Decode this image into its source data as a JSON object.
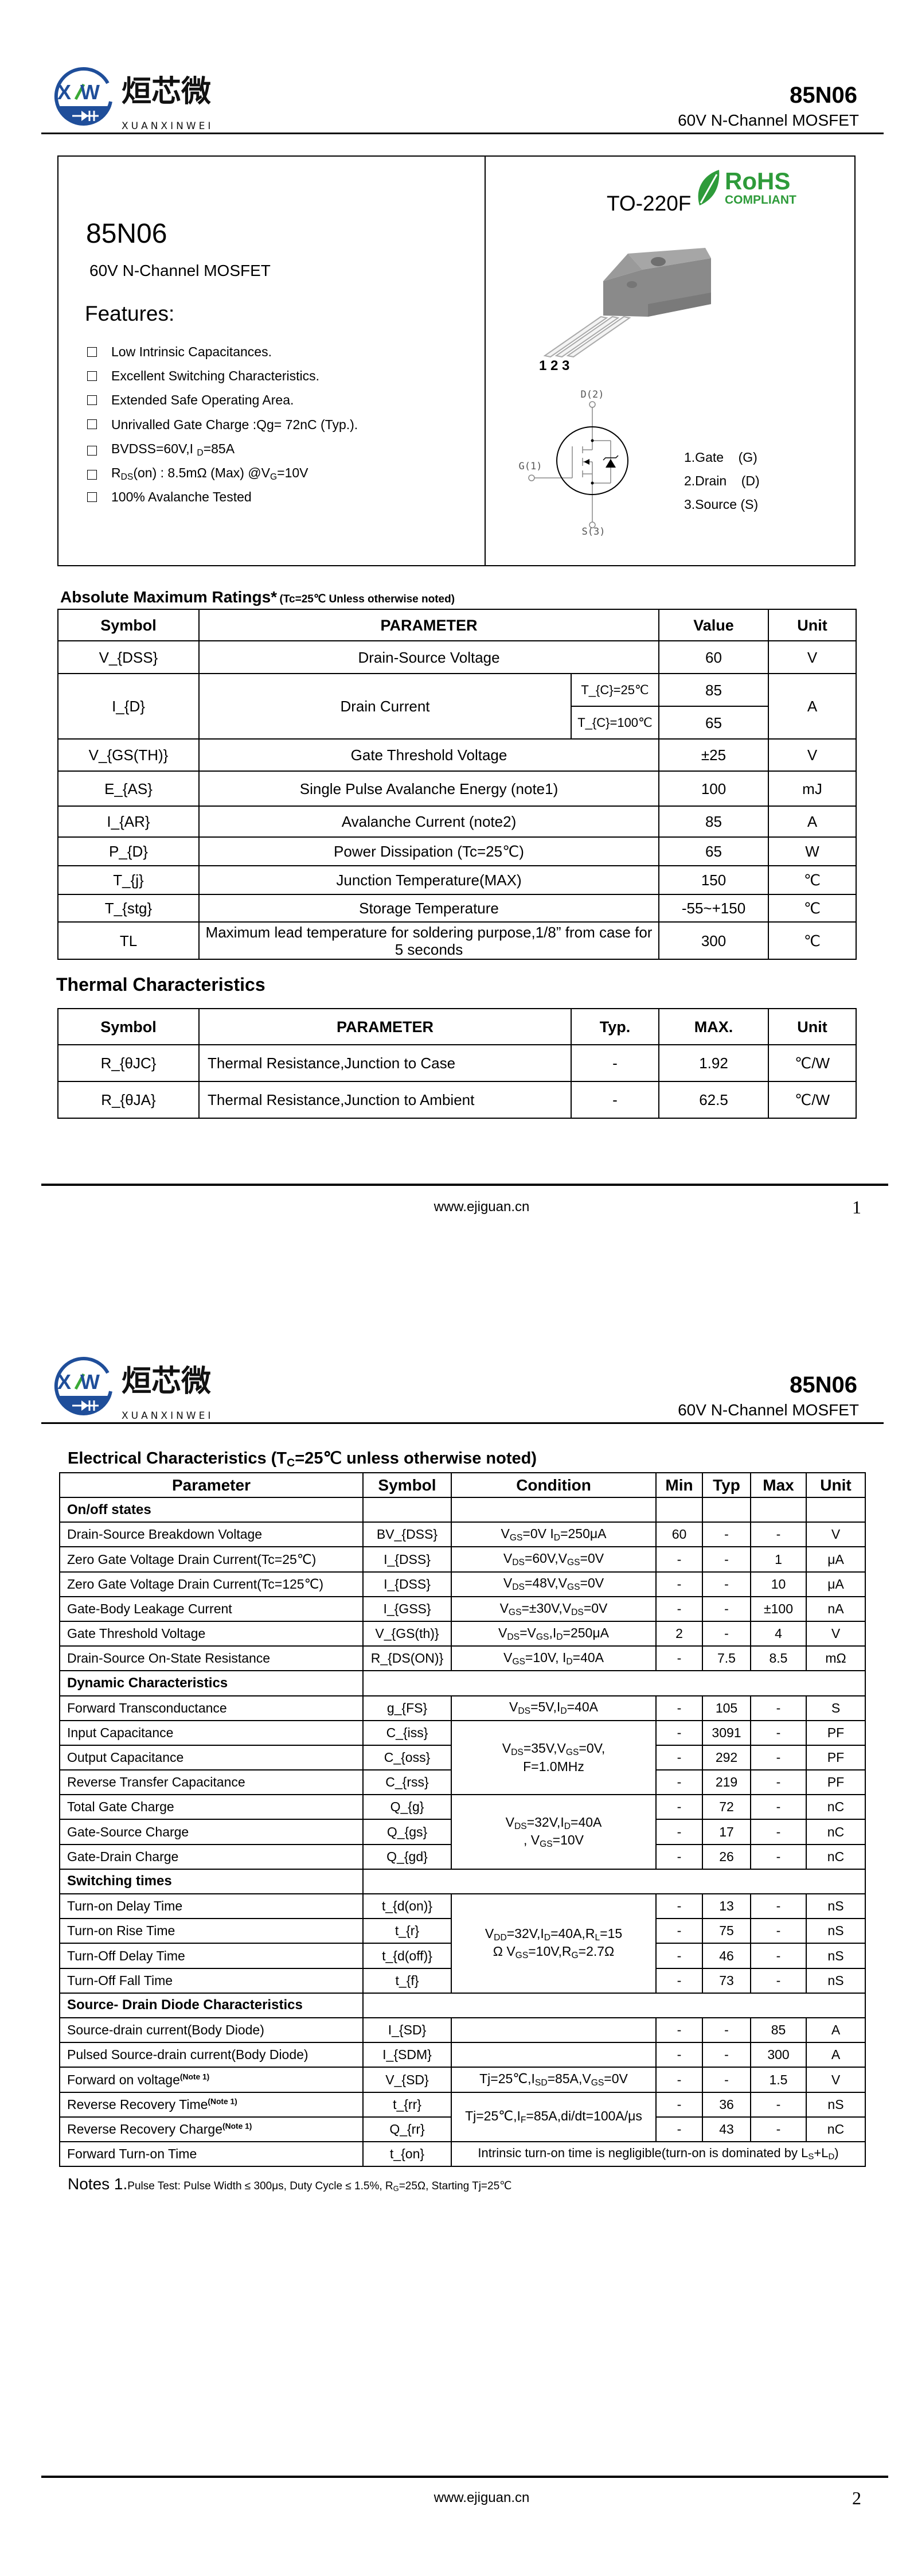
{
  "brand": {
    "logo_mark": "XW",
    "logo_cn": "烜芯微",
    "logo_en": "XUANXINWEI",
    "blue": "#1f4e9a",
    "green": "#3aa935"
  },
  "header": {
    "part": "85N06",
    "subtitle": "60V N-Channel MOSFET"
  },
  "footer": {
    "url": "www.ejiguan.cn",
    "page1": "1",
    "page2": "2"
  },
  "overview": {
    "part": "85N06",
    "subtitle": "60V N-Channel MOSFET",
    "features_title": "Features:",
    "features": [
      "Low Intrinsic Capacitances.",
      "Excellent Switching Characteristics.",
      "Extended Safe Operating Area.",
      "Unrivalled Gate Charge :Qg= 72nC (Typ.).",
      "BVDSS=60V,I _{D}=85A",
      "R_{DS}(on) : 8.5mΩ (Max) @V_{G}=10V",
      "100% Avalanche Tested"
    ],
    "package": "TO-220F",
    "rohs": {
      "line1": "RoHS",
      "line2": "COMPLIANT",
      "color": "#2e9b3a"
    },
    "pin_numbers": "1 2 3",
    "symbol_labels": {
      "drain": "D(2)",
      "gate": "G(1)",
      "source": "S(3)"
    },
    "pins": [
      "1.Gate    (G)",
      "2.Drain    (D)",
      "3.Source (S)"
    ]
  },
  "abs_max": {
    "title": "Absolute Maximum Ratings*",
    "subtitle": "(Tc=25℃ Unless otherwise noted)",
    "headers": [
      "Symbol",
      "PARAMETER",
      "Value",
      "Unit"
    ],
    "rows": [
      {
        "symbol": "V_{DSS}",
        "parameter": "Drain-Source Voltage",
        "value": "60",
        "unit": "V"
      },
      {
        "symbol": "I_{D}",
        "parameter": "Drain Current",
        "cond1": "T_{C}=25℃",
        "value1": "85",
        "cond2": "T_{C}=100℃",
        "value2": "65",
        "unit": "A"
      },
      {
        "symbol": "V_{GS(TH)}",
        "parameter": "Gate Threshold Voltage",
        "value": "±25",
        "unit": "V"
      },
      {
        "symbol": "E_{AS}",
        "parameter": "Single Pulse Avalanche Energy (note1)",
        "value": "100",
        "unit": "mJ"
      },
      {
        "symbol": "I_{AR}",
        "parameter": "Avalanche Current (note2)",
        "value": "85",
        "unit": "A"
      },
      {
        "symbol": "P_{D}",
        "parameter": "Power Dissipation (Tc=25℃)",
        "value": "65",
        "unit": "W"
      },
      {
        "symbol": "T_{j}",
        "parameter": "Junction Temperature(MAX)",
        "value": "150",
        "unit": "℃"
      },
      {
        "symbol": "T_{stg}",
        "parameter": "Storage Temperature",
        "value": "-55~+150",
        "unit": "℃"
      },
      {
        "symbol": "TL",
        "parameter": "Maximum lead temperature for soldering purpose,1/8” from case for 5 seconds",
        "value": "300",
        "unit": "℃"
      }
    ]
  },
  "thermal": {
    "title": "Thermal Characteristics",
    "headers": [
      "Symbol",
      "PARAMETER",
      "Typ.",
      "MAX.",
      "Unit"
    ],
    "rows": [
      {
        "symbol": "R_{θJC}",
        "parameter": "Thermal Resistance,Junction to Case",
        "typ": "-",
        "max": "1.92",
        "unit": "℃/W"
      },
      {
        "symbol": "R_{θJA}",
        "parameter": "Thermal Resistance,Junction to Ambient",
        "typ": "-",
        "max": "62.5",
        "unit": "℃/W"
      }
    ]
  },
  "electrical": {
    "title": "Electrical Characteristics (T_{C}=25℃ unless otherwise noted)",
    "headers": [
      "Parameter",
      "Symbol",
      "Condition",
      "Min",
      "Typ",
      "Max",
      "Unit"
    ],
    "rows": [
      {
        "section": "On/off states",
        "split": true
      },
      {
        "p": "Drain-Source Breakdown Voltage",
        "s": "BV_{DSS}",
        "c": "V_{GS}=0V I_{D}=250μA",
        "min": "60",
        "typ": "-",
        "max": "-",
        "u": "V"
      },
      {
        "p": "Zero Gate Voltage Drain Current(Tc=25℃)",
        "s": "I_{DSS}",
        "c": "V_{DS}=60V,V_{GS}=0V",
        "min": "-",
        "typ": "-",
        "max": "1",
        "u": "μA"
      },
      {
        "p": "Zero Gate Voltage Drain Current(Tc=125℃)",
        "s": "I_{DSS}",
        "c": "V_{DS}=48V,V_{GS}=0V",
        "min": "-",
        "typ": "-",
        "max": "10",
        "u": "μA"
      },
      {
        "p": "Gate-Body Leakage Current",
        "s": "I_{GSS}",
        "c": "V_{GS}=±30V,V_{DS}=0V",
        "min": "-",
        "typ": "-",
        "max": "±100",
        "u": "nA"
      },
      {
        "p": "Gate Threshold Voltage",
        "s": "V_{GS(th)}",
        "c": "V_{DS}=V_{GS},I_{D}=250μA",
        "min": "2",
        "typ": "-",
        "max": "4",
        "u": "V"
      },
      {
        "p": "Drain-Source On-State Resistance",
        "s": "R_{DS(ON)}",
        "c": "V_{GS}=10V, I_{D}=40A",
        "min": "-",
        "typ": "7.5",
        "max": "8.5",
        "u": "mΩ"
      },
      {
        "section": "Dynamic Characteristics",
        "split": false
      },
      {
        "p": "Forward Transconductance",
        "s": "g_{FS}",
        "c": "V_{DS}=5V,I_{D}=40A",
        "min": "-",
        "typ": "105",
        "max": "-",
        "u": "S"
      },
      {
        "p": "Input Capacitance",
        "s": "C_{iss}",
        "c": "V_{DS}=35V,V_{GS}=0V,\nF=1.0MHz",
        "crs": 3,
        "min": "-",
        "typ": "3091",
        "max": "-",
        "u": "PF"
      },
      {
        "p": "Output Capacitance",
        "s": "C_{oss}",
        "min": "-",
        "typ": "292",
        "max": "-",
        "u": "PF"
      },
      {
        "p": "Reverse Transfer Capacitance",
        "s": "C_{rss}",
        "min": "-",
        "typ": "219",
        "max": "-",
        "u": "PF"
      },
      {
        "p": "Total Gate Charge",
        "s": "Q_{g}",
        "c": "V_{DS}=32V,I_{D}=40A\n, V_{GS}=10V",
        "crs": 3,
        "min": "-",
        "typ": "72",
        "max": "-",
        "u": "nC"
      },
      {
        "p": "Gate-Source Charge",
        "s": "Q_{gs}",
        "min": "-",
        "typ": "17",
        "max": "-",
        "u": "nC"
      },
      {
        "p": "Gate-Drain Charge",
        "s": "Q_{gd}",
        "min": "-",
        "typ": "26",
        "max": "-",
        "u": "nC"
      },
      {
        "section": "Switching times",
        "split": false
      },
      {
        "p": "Turn-on Delay Time",
        "s": "t_{d(on)}",
        "c": "V_{DD}=32V,I_{D}=40A,R_{L}=15\nΩ V_{GS}=10V,R_{G}=2.7Ω",
        "crs": 4,
        "min": "-",
        "typ": "13",
        "max": "-",
        "u": "nS"
      },
      {
        "p": "Turn-on Rise Time",
        "s": "t_{r}",
        "min": "-",
        "typ": "75",
        "max": "-",
        "u": "nS"
      },
      {
        "p": "Turn-Off Delay Time",
        "s": "t_{d(off)}",
        "min": "-",
        "typ": "46",
        "max": "-",
        "u": "nS"
      },
      {
        "p": "Turn-Off Fall Time",
        "s": "t_{f}",
        "min": "-",
        "typ": "73",
        "max": "-",
        "u": "nS"
      },
      {
        "section": "Source- Drain Diode Characteristics",
        "split": false
      },
      {
        "p": "Source-drain current(Body Diode)",
        "s": "I_{SD}",
        "c": "",
        "min": "-",
        "typ": "-",
        "max": "85",
        "u": "A"
      },
      {
        "p": "Pulsed Source-drain current(Body Diode)",
        "s": "I_{SDM}",
        "c": "",
        "min": "-",
        "typ": "-",
        "max": "300",
        "u": "A"
      },
      {
        "p": "Forward on voltage^{(Note 1)}",
        "s": "V_{SD}",
        "c": "Tj=25℃,I_{SD}=85A,V_{GS}=0V",
        "min": "-",
        "typ": "-",
        "max": "1.5",
        "u": "V"
      },
      {
        "p": "Reverse Recovery Time^{(Note 1)}",
        "s": "t_{rr}",
        "c": "Tj=25℃,I_{F}=85A,di/dt=100A/μs",
        "crs": 2,
        "min": "-",
        "typ": "36",
        "max": "-",
        "u": "nS"
      },
      {
        "p": "Reverse Recovery Charge^{(Note 1)}",
        "s": "Q_{rr}",
        "min": "-",
        "typ": "43",
        "max": "-",
        "u": "nC"
      },
      {
        "p": "Forward Turn-on Time",
        "s": "t_{on}",
        "c": "Intrinsic turn-on time is negligible(turn-on is dominated by L_{S}+L_{D})",
        "span_all": true
      }
    ],
    "notes_label": "Notes 1.",
    "notes_text": "Pulse Test: Pulse Width ≤ 300μs, Duty Cycle ≤ 1.5%, R_{G}=25Ω, Starting Tj=25℃"
  }
}
